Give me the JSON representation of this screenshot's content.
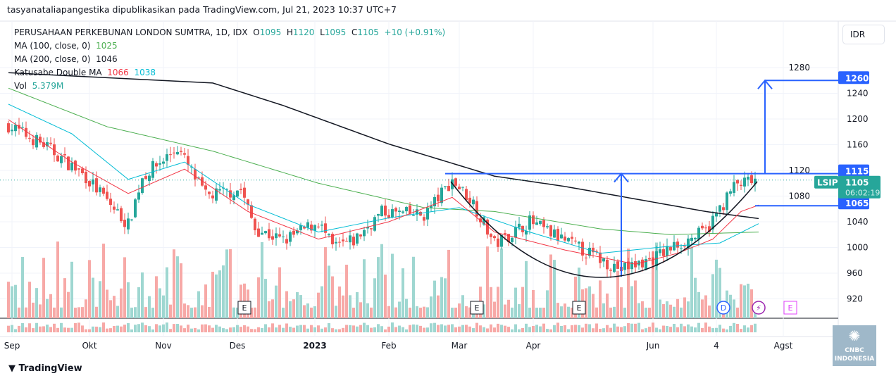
{
  "watermark": "tasyanataliapangestika dipublikasikan pada TradingView.com, Jul 21, 2023 10:37 UTC+7",
  "legend": {
    "title": "PERUSAHAAN PERKEBUNAN LONDON SUMTRA, 1D, IDX",
    "o_label": "O",
    "o": "1095",
    "h_label": "H",
    "h": "1120",
    "l_label": "L",
    "l": "1095",
    "c_label": "C",
    "c": "1105",
    "change": "+10 (+0.91%)",
    "ma100_label": "MA (100, close, 0)",
    "ma100": "1025",
    "ma200_label": "MA (200, close, 0)",
    "ma200": "1046",
    "katusabe_label": "Katusabe Double MA",
    "katusabe_fast": "1066",
    "katusabe_slow": "1038",
    "vol_label": "Vol",
    "vol": "5.379M"
  },
  "currency": "IDR",
  "footer": {
    "brand": "TradingView",
    "badge": "CNBC INDONESIA"
  },
  "colors": {
    "up": "#26a69a",
    "down": "#ef5350",
    "ma200": "#131722",
    "ma100": "#4caf50",
    "fast": "#f23645",
    "slow": "#00bcd4",
    "drawing": "#2962ff"
  },
  "chart_data": {
    "type": "candlestick",
    "symbol": "LSIP",
    "ylim": [
      900,
      1300
    ],
    "yticks": [
      920,
      960,
      1000,
      1040,
      1080,
      1120,
      1160,
      1200,
      1240,
      1280
    ],
    "xticks": [
      {
        "i": 1,
        "label": "Sep"
      },
      {
        "i": 23,
        "label": "Okt"
      },
      {
        "i": 44,
        "label": "Nov"
      },
      {
        "i": 65,
        "label": "Des"
      },
      {
        "i": 87,
        "label": "2023"
      },
      {
        "i": 108,
        "label": "Feb"
      },
      {
        "i": 128,
        "label": "Mar"
      },
      {
        "i": 149,
        "label": "Apr"
      },
      {
        "i": 183,
        "label": "Jun"
      },
      {
        "i": 201,
        "label": "4"
      },
      {
        "i": 220,
        "label": "Agst"
      }
    ],
    "n_bars": 213,
    "close_keypoints": [
      [
        0,
        1190
      ],
      [
        10,
        1160
      ],
      [
        22,
        1110
      ],
      [
        34,
        1035
      ],
      [
        38,
        1110
      ],
      [
        48,
        1155
      ],
      [
        56,
        1080
      ],
      [
        66,
        1090
      ],
      [
        70,
        1030
      ],
      [
        78,
        1010
      ],
      [
        88,
        1040
      ],
      [
        92,
        1000
      ],
      [
        98,
        1010
      ],
      [
        106,
        1055
      ],
      [
        118,
        1050
      ],
      [
        126,
        1105
      ],
      [
        132,
        1070
      ],
      [
        138,
        1005
      ],
      [
        148,
        1040
      ],
      [
        158,
        1010
      ],
      [
        168,
        982
      ],
      [
        174,
        966
      ],
      [
        182,
        980
      ],
      [
        190,
        1005
      ],
      [
        198,
        1025
      ],
      [
        206,
        1095
      ],
      [
        212,
        1105
      ]
    ],
    "ma200": [
      [
        0,
        1272
      ],
      [
        58,
        1256
      ],
      [
        78,
        1221
      ],
      [
        108,
        1161
      ],
      [
        138,
        1111
      ],
      [
        158,
        1095
      ],
      [
        198,
        1056
      ],
      [
        213,
        1045
      ]
    ],
    "ma100": [
      [
        0,
        1248
      ],
      [
        28,
        1188
      ],
      [
        58,
        1150
      ],
      [
        88,
        1100
      ],
      [
        118,
        1062
      ],
      [
        138,
        1056
      ],
      [
        168,
        1029
      ],
      [
        188,
        1020
      ],
      [
        213,
        1024
      ]
    ],
    "katusabe_slow": [
      [
        0,
        1223
      ],
      [
        18,
        1177
      ],
      [
        34,
        1106
      ],
      [
        50,
        1133
      ],
      [
        68,
        1067
      ],
      [
        88,
        1024
      ],
      [
        108,
        1046
      ],
      [
        128,
        1062
      ],
      [
        148,
        1024
      ],
      [
        168,
        991
      ],
      [
        188,
        1002
      ],
      [
        202,
        1007
      ],
      [
        213,
        1037
      ]
    ],
    "katusabe_fast": [
      [
        0,
        1199
      ],
      [
        18,
        1133
      ],
      [
        34,
        1084
      ],
      [
        50,
        1122
      ],
      [
        68,
        1056
      ],
      [
        88,
        1013
      ],
      [
        108,
        1040
      ],
      [
        126,
        1078
      ],
      [
        138,
        1024
      ],
      [
        158,
        996
      ],
      [
        178,
        974
      ],
      [
        190,
        991
      ],
      [
        200,
        1013
      ],
      [
        208,
        1056
      ],
      [
        213,
        1066
      ]
    ],
    "last_price": 1105,
    "countdown": "06:02:19",
    "levels": [
      {
        "value": 1260,
        "label": "1260"
      },
      {
        "value": 1115,
        "label": "1115"
      },
      {
        "value": 1065,
        "label": "1065"
      }
    ],
    "events": [
      {
        "i": 65,
        "label": "E",
        "kind": "earnings"
      },
      {
        "i": 133,
        "label": "E",
        "kind": "earnings"
      },
      {
        "i": 162,
        "label": "E",
        "kind": "earnings"
      },
      {
        "i": 203,
        "label": "D",
        "kind": "dividend"
      },
      {
        "i": 213,
        "label": "⚡",
        "kind": "split"
      },
      {
        "i": 222,
        "label": "E",
        "kind": "earnings-upcoming"
      }
    ],
    "vol_ylim": [
      0,
      10
    ]
  }
}
